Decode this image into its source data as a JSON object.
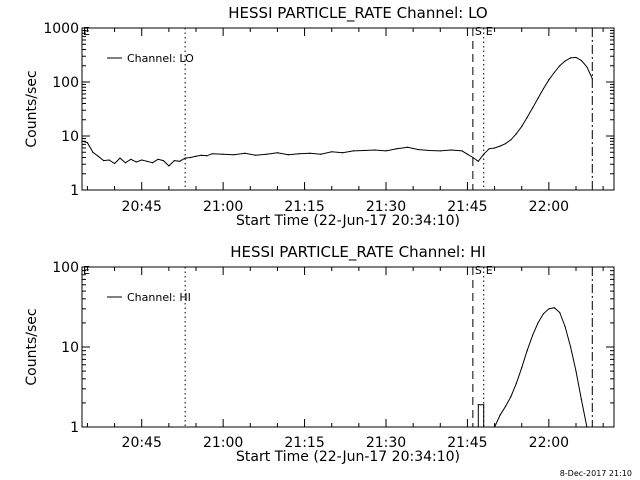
{
  "chart_data": [
    {
      "type": "line",
      "title": "HESSI PARTICLE_RATE Channel: LO",
      "xlabel": "Start Time (22-Jun-17 20:34:10)",
      "ylabel": "Counts/sec",
      "y_scale": "log",
      "ylim": [
        1,
        1000
      ],
      "y_ticks": [
        1,
        10,
        100,
        1000
      ],
      "y_tick_labels": [
        "1",
        "10",
        "100",
        "1000"
      ],
      "xlim": [
        "20:34",
        "22:12"
      ],
      "x_ticks": [
        "20:45",
        "21:00",
        "21:15",
        "21:30",
        "21:45",
        "22:00"
      ],
      "legend": "top-left",
      "series": [
        {
          "name": "Channel: LO",
          "points": [
            [
              "20:34",
              8
            ],
            [
              "20:35",
              7.5
            ],
            [
              "20:36",
              5
            ],
            [
              "20:37",
              4.2
            ],
            [
              "20:38",
              3.5
            ],
            [
              "20:39",
              3.6
            ],
            [
              "20:40",
              3.1
            ],
            [
              "20:41",
              3.9
            ],
            [
              "20:42",
              3.2
            ],
            [
              "20:43",
              3.7
            ],
            [
              "20:44",
              3.3
            ],
            [
              "20:45",
              3.6
            ],
            [
              "20:46",
              3.4
            ],
            [
              "20:47",
              3.2
            ],
            [
              "20:48",
              3.7
            ],
            [
              "20:49",
              3.5
            ],
            [
              "20:50",
              2.8
            ],
            [
              "20:51",
              3.5
            ],
            [
              "20:52",
              3.4
            ],
            [
              "20:53",
              3.9
            ],
            [
              "20:54",
              4
            ],
            [
              "20:55",
              4.2
            ],
            [
              "20:56",
              4.4
            ],
            [
              "20:57",
              4.3
            ],
            [
              "20:58",
              4.7
            ],
            [
              "21:00",
              4.6
            ],
            [
              "21:02",
              4.5
            ],
            [
              "21:04",
              4.8
            ],
            [
              "21:06",
              4.4
            ],
            [
              "21:08",
              4.6
            ],
            [
              "21:10",
              4.9
            ],
            [
              "21:12",
              4.5
            ],
            [
              "21:14",
              4.7
            ],
            [
              "21:16",
              4.8
            ],
            [
              "21:18",
              4.6
            ],
            [
              "21:20",
              5.1
            ],
            [
              "21:22",
              4.9
            ],
            [
              "21:24",
              5.3
            ],
            [
              "21:26",
              5.4
            ],
            [
              "21:28",
              5.5
            ],
            [
              "21:30",
              5.3
            ],
            [
              "21:32",
              5.8
            ],
            [
              "21:34",
              6.2
            ],
            [
              "21:36",
              5.6
            ],
            [
              "21:38",
              5.4
            ],
            [
              "21:40",
              5.3
            ],
            [
              "21:42",
              5.5
            ],
            [
              "21:44",
              5.3
            ],
            [
              "21:45",
              4.6
            ],
            [
              "21:46",
              4
            ],
            [
              "21:47",
              3.4
            ],
            [
              "21:48",
              4.6
            ],
            [
              "21:49",
              5.8
            ],
            [
              "21:50",
              6
            ],
            [
              "21:51",
              6.5
            ],
            [
              "21:52",
              7.2
            ],
            [
              "21:53",
              8.5
            ],
            [
              "21:54",
              11
            ],
            [
              "21:55",
              15
            ],
            [
              "21:56",
              22
            ],
            [
              "21:57",
              33
            ],
            [
              "21:58",
              50
            ],
            [
              "21:59",
              75
            ],
            [
              "22:00",
              110
            ],
            [
              "22:01",
              150
            ],
            [
              "22:02",
              200
            ],
            [
              "22:03",
              245
            ],
            [
              "22:04",
              280
            ],
            [
              "22:05",
              285
            ],
            [
              "22:06",
              250
            ],
            [
              "22:07",
              190
            ],
            [
              "22:08",
              115
            ]
          ]
        }
      ],
      "markers": [
        {
          "label": "",
          "time": "20:53",
          "style": "dotted"
        },
        {
          "label": "S",
          "time": "21:46",
          "style": "dashed"
        },
        {
          "label": "E",
          "time": "21:48",
          "style": "dotted"
        },
        {
          "label": "",
          "time": "22:08",
          "style": "dash-dot"
        }
      ],
      "edge_label": "E"
    },
    {
      "type": "line",
      "title": "HESSI PARTICLE_RATE Channel: HI",
      "xlabel": "Start Time (22-Jun-17 20:34:10)",
      "ylabel": "Counts/sec",
      "y_scale": "log",
      "ylim": [
        1,
        100
      ],
      "y_ticks": [
        1,
        10,
        100
      ],
      "y_tick_labels": [
        "1",
        "10",
        "100"
      ],
      "xlim": [
        "20:34",
        "22:12"
      ],
      "x_ticks": [
        "20:45",
        "21:00",
        "21:15",
        "21:30",
        "21:45",
        "22:00"
      ],
      "legend": "top-left",
      "series": [
        {
          "name": "Channel: HI",
          "points": [
            [
              "21:47",
              1
            ],
            [
              "21:47",
              1.9
            ],
            [
              "21:48",
              1.9
            ],
            [
              "21:48",
              1
            ],
            [
              "21:50",
              1
            ],
            [
              "21:51",
              1.4
            ],
            [
              "21:52",
              1.8
            ],
            [
              "21:53",
              2.4
            ],
            [
              "21:54",
              3.5
            ],
            [
              "21:55",
              5.5
            ],
            [
              "21:56",
              9
            ],
            [
              "21:57",
              14
            ],
            [
              "21:58",
              20
            ],
            [
              "21:59",
              26
            ],
            [
              "22:00",
              30
            ],
            [
              "22:01",
              31
            ],
            [
              "22:02",
              27
            ],
            [
              "22:03",
              18
            ],
            [
              "22:04",
              10
            ],
            [
              "22:05",
              5
            ],
            [
              "22:06",
              2.2
            ],
            [
              "22:07",
              1
            ]
          ]
        }
      ],
      "markers": [
        {
          "label": "",
          "time": "20:53",
          "style": "dotted"
        },
        {
          "label": "S",
          "time": "21:46",
          "style": "dashed"
        },
        {
          "label": "E",
          "time": "21:48",
          "style": "dotted"
        },
        {
          "label": "",
          "time": "22:08",
          "style": "dash-dot"
        }
      ],
      "edge_label": "E"
    }
  ],
  "footer": {
    "timestamp": "8-Dec-2017 21:10"
  }
}
